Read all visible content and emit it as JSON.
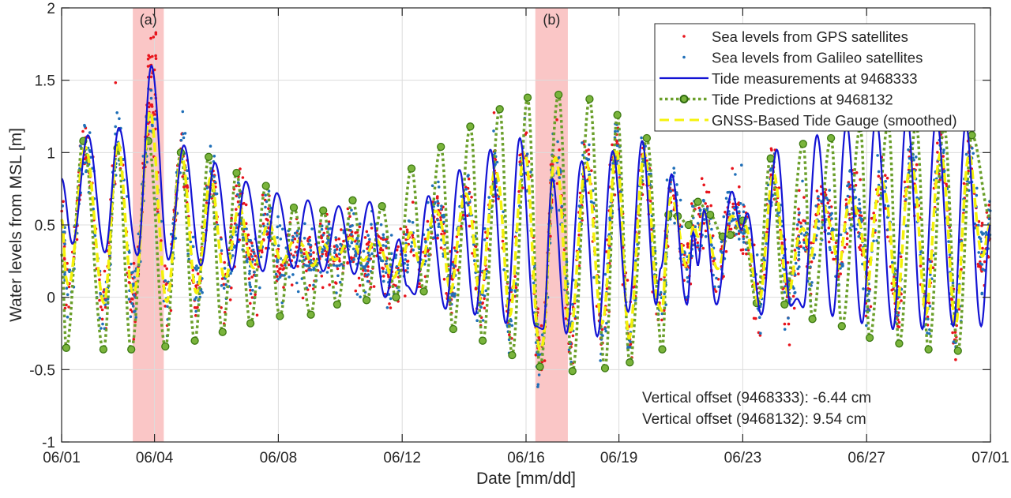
{
  "chart_data": {
    "type": "line",
    "title": "",
    "xlabel": "Date [mm/dd]",
    "ylabel": "Water levels from MSL [m]",
    "xlim_days": [
      0,
      30
    ],
    "ylim": [
      -1,
      2
    ],
    "grid": true,
    "x_ticks": [
      {
        "day": 0,
        "label": "06/01"
      },
      {
        "day": 3,
        "label": "06/04"
      },
      {
        "day": 7,
        "label": "06/08"
      },
      {
        "day": 11,
        "label": "06/12"
      },
      {
        "day": 15,
        "label": "06/16"
      },
      {
        "day": 18,
        "label": "06/19"
      },
      {
        "day": 22,
        "label": "06/23"
      },
      {
        "day": 26,
        "label": "06/27"
      },
      {
        "day": 30,
        "label": "07/01"
      }
    ],
    "y_ticks": [
      {
        "value": -1,
        "label": "-1"
      },
      {
        "value": -0.5,
        "label": "-0.5"
      },
      {
        "value": 0,
        "label": "0"
      },
      {
        "value": 0.5,
        "label": "0.5"
      },
      {
        "value": 1,
        "label": "1"
      },
      {
        "value": 1.5,
        "label": "1.5"
      },
      {
        "value": 2,
        "label": "2"
      }
    ],
    "highlights": [
      {
        "label": "(a)",
        "start_day": 2.3,
        "end_day": 3.3,
        "color": "#f9b8b8"
      },
      {
        "label": "(b)",
        "start_day": 15.3,
        "end_day": 16.35,
        "color": "#f9b8b8"
      }
    ],
    "legend": {
      "placement": "top-right",
      "entries": [
        {
          "label": "Sea levels from GPS satellites",
          "style": "dot",
          "color": "#e8141c"
        },
        {
          "label": "Sea levels from Galileo satellites",
          "style": "dot",
          "color": "#1f6fb8"
        },
        {
          "label": "Tide measurements at 9468333",
          "style": "solid",
          "color": "#1414d4"
        },
        {
          "label": "Tide Predictions at 9468132",
          "style": "dotted-circle",
          "color": "#6a9f2a"
        },
        {
          "label": "GNSS-Based Tide Gauge (smoothed)",
          "style": "dashed",
          "color": "#f5f20a"
        }
      ]
    },
    "annotations": [
      "Vertical offset (9468333): -6.44 cm",
      "Vertical offset (9468132): 9.54 cm"
    ],
    "series": [
      {
        "name": "Tide measurements at 9468333",
        "note": "daily high/low extrema [day, value]",
        "extrema": [
          [
            0.0,
            0.82
          ],
          [
            0.35,
            0.37
          ],
          [
            0.85,
            1.12
          ],
          [
            1.4,
            0.31
          ],
          [
            1.85,
            1.17
          ],
          [
            2.45,
            0.29
          ],
          [
            2.9,
            1.6
          ],
          [
            3.45,
            0.26
          ],
          [
            3.95,
            1.05
          ],
          [
            4.5,
            0.22
          ],
          [
            4.95,
            0.93
          ],
          [
            5.5,
            0.19
          ],
          [
            5.95,
            0.8
          ],
          [
            6.5,
            0.18
          ],
          [
            6.95,
            0.72
          ],
          [
            7.5,
            0.2
          ],
          [
            7.95,
            0.67
          ],
          [
            8.45,
            0.18
          ],
          [
            8.95,
            0.63
          ],
          [
            9.45,
            0.16
          ],
          [
            9.95,
            0.66
          ],
          [
            10.45,
            0.0
          ],
          [
            10.9,
            0.4
          ],
          [
            11.15,
            0.08
          ],
          [
            11.4,
            0.02
          ],
          [
            11.85,
            0.7
          ],
          [
            12.4,
            -0.08
          ],
          [
            12.85,
            0.88
          ],
          [
            13.35,
            -0.12
          ],
          [
            13.85,
            1.02
          ],
          [
            14.35,
            -0.18
          ],
          [
            14.8,
            1.1
          ],
          [
            15.3,
            -0.2
          ],
          [
            15.55,
            -0.22
          ],
          [
            15.85,
            0.82
          ],
          [
            16.3,
            -0.25
          ],
          [
            16.8,
            0.94
          ],
          [
            17.3,
            -0.27
          ],
          [
            17.8,
            1.01
          ],
          [
            18.3,
            -0.1
          ],
          [
            18.75,
            1.08
          ],
          [
            19.2,
            -0.05
          ],
          [
            19.35,
            0.2
          ],
          [
            19.7,
            0.85
          ],
          [
            20.2,
            -0.05
          ],
          [
            20.4,
            0.45
          ],
          [
            20.55,
            0.22
          ],
          [
            20.75,
            0.6
          ],
          [
            21.15,
            -0.05
          ],
          [
            21.65,
            0.73
          ],
          [
            21.95,
            0.47
          ],
          [
            22.15,
            0.58
          ],
          [
            22.6,
            -0.12
          ],
          [
            23.1,
            1.02
          ],
          [
            23.55,
            -0.06
          ],
          [
            23.75,
            -0.01
          ],
          [
            23.95,
            -0.07
          ],
          [
            24.4,
            1.12
          ],
          [
            24.9,
            -0.13
          ],
          [
            25.35,
            1.2
          ],
          [
            25.85,
            -0.18
          ],
          [
            26.3,
            1.24
          ],
          [
            26.85,
            -0.22
          ],
          [
            27.3,
            1.26
          ],
          [
            27.8,
            -0.22
          ],
          [
            28.25,
            1.25
          ],
          [
            28.8,
            -0.2
          ],
          [
            29.2,
            1.2
          ],
          [
            29.7,
            -0.2
          ],
          [
            30.0,
            0.5
          ]
        ],
        "color": "#1414d4"
      },
      {
        "name": "Tide Predictions at 9468132",
        "note": "daily high/low extrema [day, value] (markers shown)",
        "extrema": [
          [
            0.0,
            0.3
          ],
          [
            0.15,
            -0.35
          ],
          [
            0.7,
            1.08
          ],
          [
            1.35,
            -0.36
          ],
          [
            1.8,
            1.03
          ],
          [
            2.25,
            -0.36
          ],
          [
            2.8,
            1.08
          ],
          [
            3.35,
            -0.34
          ],
          [
            3.85,
            1.0
          ],
          [
            4.3,
            -0.3
          ],
          [
            4.75,
            0.97
          ],
          [
            5.2,
            -0.24
          ],
          [
            5.65,
            0.86
          ],
          [
            6.1,
            -0.18
          ],
          [
            6.6,
            0.77
          ],
          [
            7.05,
            -0.13
          ],
          [
            7.5,
            0.62
          ],
          [
            8.05,
            -0.12
          ],
          [
            8.45,
            0.6
          ],
          [
            8.9,
            -0.05
          ],
          [
            9.4,
            0.67
          ],
          [
            9.85,
            -0.02
          ],
          [
            10.35,
            0.63
          ],
          [
            10.8,
            0.0
          ],
          [
            11.3,
            0.89
          ],
          [
            11.7,
            0.04
          ],
          [
            12.25,
            1.04
          ],
          [
            12.65,
            -0.22
          ],
          [
            13.2,
            1.18
          ],
          [
            13.6,
            -0.3
          ],
          [
            14.15,
            1.3
          ],
          [
            14.55,
            -0.4
          ],
          [
            15.05,
            1.38
          ],
          [
            15.45,
            -0.48
          ],
          [
            16.05,
            1.4
          ],
          [
            16.5,
            -0.51
          ],
          [
            17.05,
            1.37
          ],
          [
            17.55,
            -0.49
          ],
          [
            17.95,
            1.26
          ],
          [
            18.35,
            -0.45
          ],
          [
            18.9,
            1.1
          ],
          [
            19.4,
            -0.36
          ],
          [
            19.6,
            0.57
          ],
          [
            19.9,
            0.56
          ],
          [
            20.25,
            0.5
          ],
          [
            20.55,
            0.66
          ],
          [
            20.95,
            0.57
          ],
          [
            21.35,
            0.42
          ],
          [
            21.6,
            0.43
          ],
          [
            22.0,
            0.53
          ],
          [
            22.45,
            -0.04
          ],
          [
            22.9,
            0.96
          ],
          [
            23.35,
            -0.05
          ],
          [
            23.95,
            1.06
          ],
          [
            24.25,
            -0.15
          ],
          [
            24.85,
            1.1
          ],
          [
            25.2,
            -0.2
          ],
          [
            25.8,
            1.17
          ],
          [
            26.1,
            -0.28
          ],
          [
            26.7,
            1.2
          ],
          [
            27.05,
            -0.32
          ],
          [
            27.6,
            1.2
          ],
          [
            28.0,
            -0.36
          ],
          [
            28.5,
            1.18
          ],
          [
            28.95,
            -0.37
          ],
          [
            29.4,
            1.12
          ],
          [
            30.0,
            0.55
          ]
        ],
        "color": "#6a9f2a"
      }
    ],
    "scatter_note": "GPS and Galileo sea-level retrievals scatter around the GNSS-based smoothed curve with roughly ±0.2 m spread; peak retrievals reach ~1.84 m near 06/03 and ~-0.7 m near 06/12 and 06/17."
  }
}
